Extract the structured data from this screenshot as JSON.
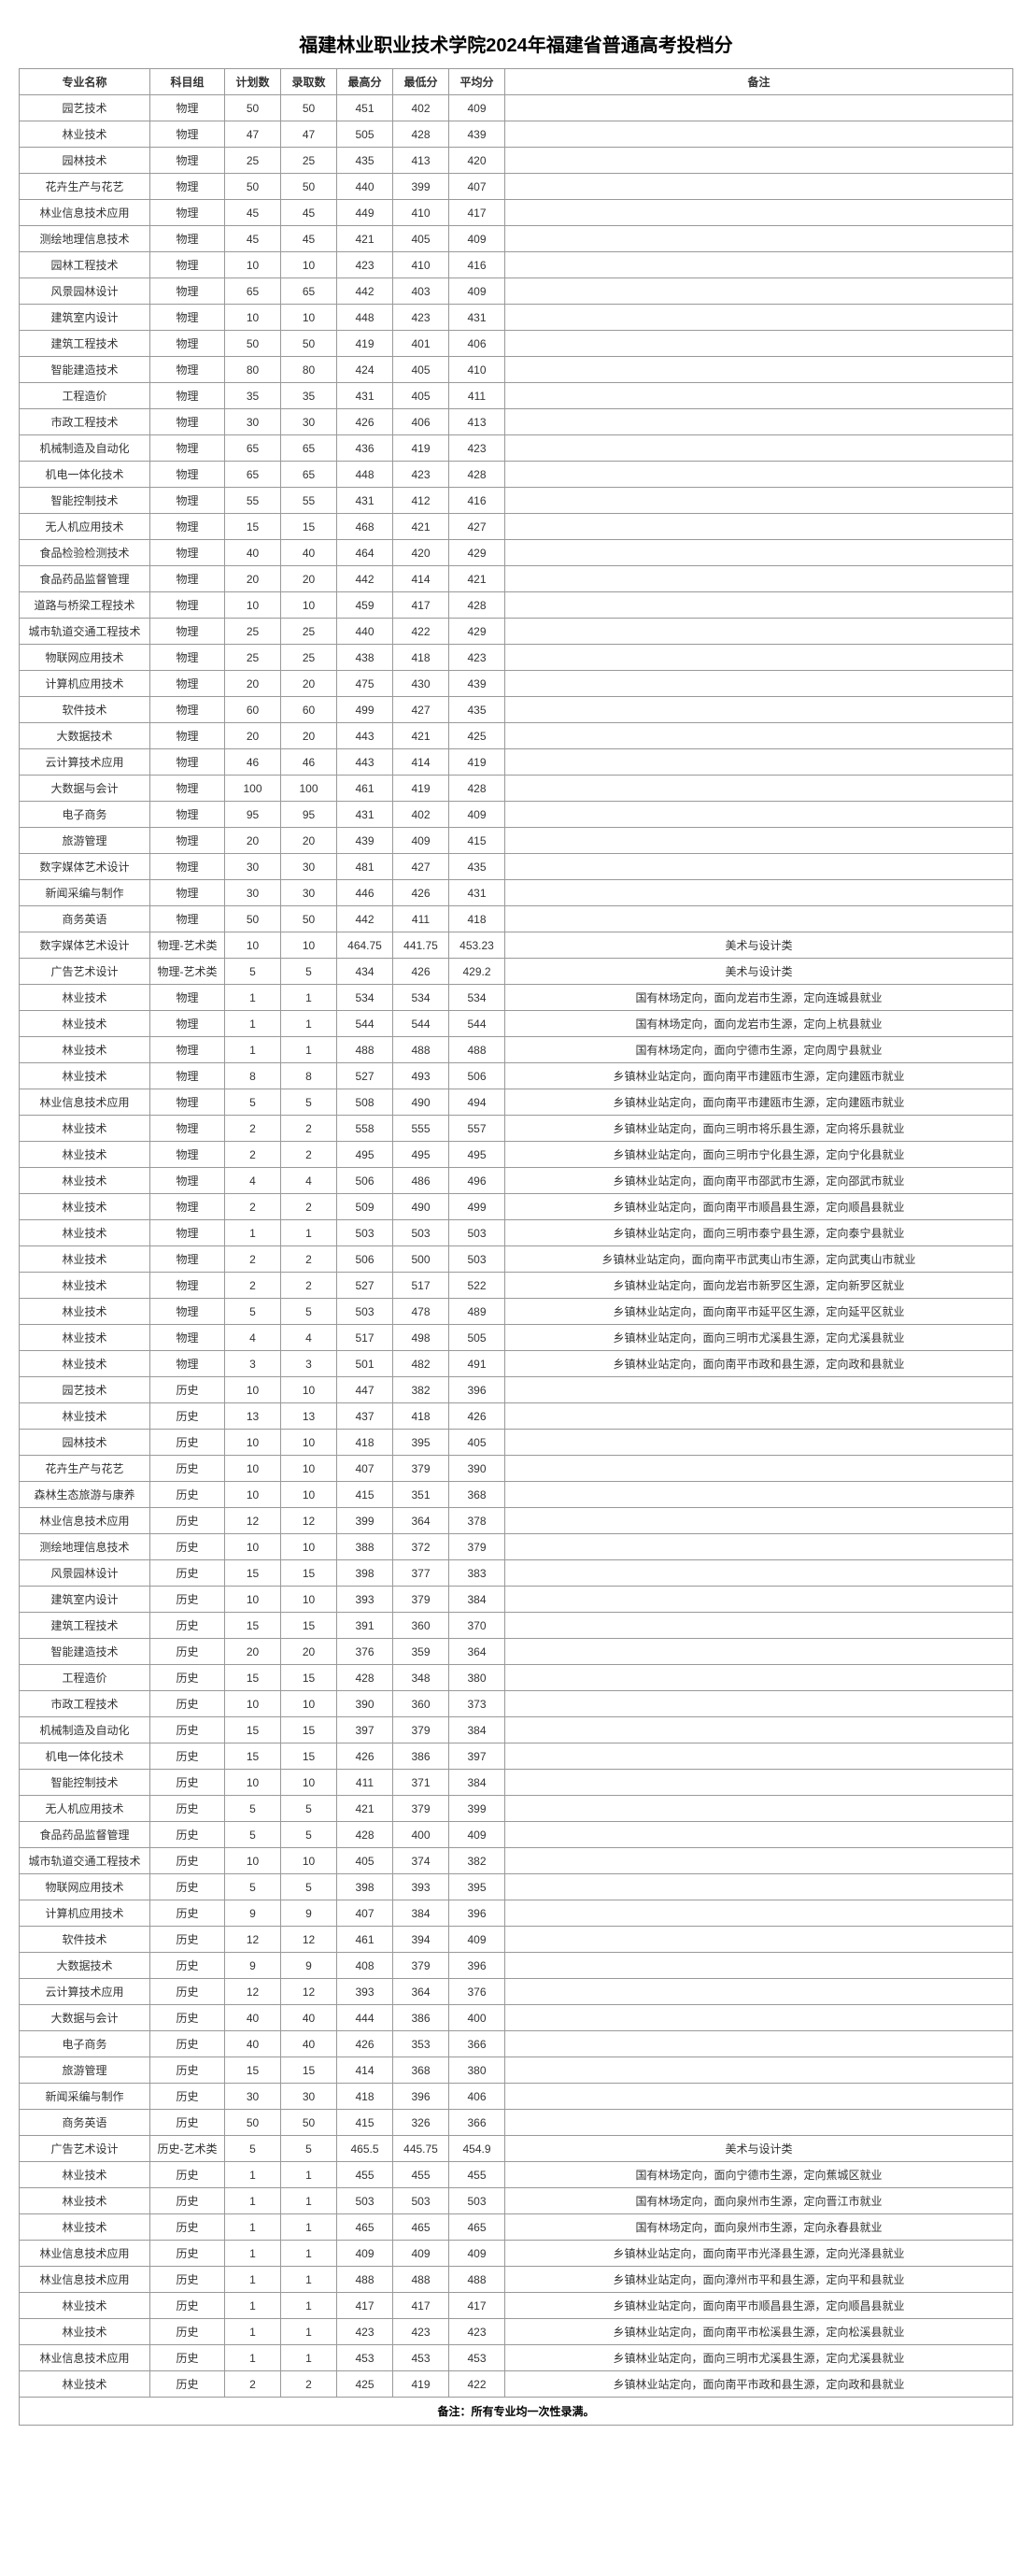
{
  "title": "福建林业职业技术学院2024年福建省普通高考投档分",
  "headers": [
    "专业名称",
    "科目组",
    "计划数",
    "录取数",
    "最高分",
    "最低分",
    "平均分",
    "备注"
  ],
  "footer": "备注：所有专业均一次性录满。",
  "rows": [
    {
      "major": "园艺技术",
      "subject": "物理",
      "plan": "50",
      "admit": "50",
      "high": "451",
      "low": "402",
      "avg": "409",
      "note": ""
    },
    {
      "major": "林业技术",
      "subject": "物理",
      "plan": "47",
      "admit": "47",
      "high": "505",
      "low": "428",
      "avg": "439",
      "note": ""
    },
    {
      "major": "园林技术",
      "subject": "物理",
      "plan": "25",
      "admit": "25",
      "high": "435",
      "low": "413",
      "avg": "420",
      "note": ""
    },
    {
      "major": "花卉生产与花艺",
      "subject": "物理",
      "plan": "50",
      "admit": "50",
      "high": "440",
      "low": "399",
      "avg": "407",
      "note": ""
    },
    {
      "major": "林业信息技术应用",
      "subject": "物理",
      "plan": "45",
      "admit": "45",
      "high": "449",
      "low": "410",
      "avg": "417",
      "note": ""
    },
    {
      "major": "测绘地理信息技术",
      "subject": "物理",
      "plan": "45",
      "admit": "45",
      "high": "421",
      "low": "405",
      "avg": "409",
      "note": ""
    },
    {
      "major": "园林工程技术",
      "subject": "物理",
      "plan": "10",
      "admit": "10",
      "high": "423",
      "low": "410",
      "avg": "416",
      "note": ""
    },
    {
      "major": "风景园林设计",
      "subject": "物理",
      "plan": "65",
      "admit": "65",
      "high": "442",
      "low": "403",
      "avg": "409",
      "note": ""
    },
    {
      "major": "建筑室内设计",
      "subject": "物理",
      "plan": "10",
      "admit": "10",
      "high": "448",
      "low": "423",
      "avg": "431",
      "note": ""
    },
    {
      "major": "建筑工程技术",
      "subject": "物理",
      "plan": "50",
      "admit": "50",
      "high": "419",
      "low": "401",
      "avg": "406",
      "note": ""
    },
    {
      "major": "智能建造技术",
      "subject": "物理",
      "plan": "80",
      "admit": "80",
      "high": "424",
      "low": "405",
      "avg": "410",
      "note": ""
    },
    {
      "major": "工程造价",
      "subject": "物理",
      "plan": "35",
      "admit": "35",
      "high": "431",
      "low": "405",
      "avg": "411",
      "note": ""
    },
    {
      "major": "市政工程技术",
      "subject": "物理",
      "plan": "30",
      "admit": "30",
      "high": "426",
      "low": "406",
      "avg": "413",
      "note": ""
    },
    {
      "major": "机械制造及自动化",
      "subject": "物理",
      "plan": "65",
      "admit": "65",
      "high": "436",
      "low": "419",
      "avg": "423",
      "note": ""
    },
    {
      "major": "机电一体化技术",
      "subject": "物理",
      "plan": "65",
      "admit": "65",
      "high": "448",
      "low": "423",
      "avg": "428",
      "note": ""
    },
    {
      "major": "智能控制技术",
      "subject": "物理",
      "plan": "55",
      "admit": "55",
      "high": "431",
      "low": "412",
      "avg": "416",
      "note": ""
    },
    {
      "major": "无人机应用技术",
      "subject": "物理",
      "plan": "15",
      "admit": "15",
      "high": "468",
      "low": "421",
      "avg": "427",
      "note": ""
    },
    {
      "major": "食品检验检测技术",
      "subject": "物理",
      "plan": "40",
      "admit": "40",
      "high": "464",
      "low": "420",
      "avg": "429",
      "note": ""
    },
    {
      "major": "食品药品监督管理",
      "subject": "物理",
      "plan": "20",
      "admit": "20",
      "high": "442",
      "low": "414",
      "avg": "421",
      "note": ""
    },
    {
      "major": "道路与桥梁工程技术",
      "subject": "物理",
      "plan": "10",
      "admit": "10",
      "high": "459",
      "low": "417",
      "avg": "428",
      "note": ""
    },
    {
      "major": "城市轨道交通工程技术",
      "subject": "物理",
      "plan": "25",
      "admit": "25",
      "high": "440",
      "low": "422",
      "avg": "429",
      "note": ""
    },
    {
      "major": "物联网应用技术",
      "subject": "物理",
      "plan": "25",
      "admit": "25",
      "high": "438",
      "low": "418",
      "avg": "423",
      "note": ""
    },
    {
      "major": "计算机应用技术",
      "subject": "物理",
      "plan": "20",
      "admit": "20",
      "high": "475",
      "low": "430",
      "avg": "439",
      "note": ""
    },
    {
      "major": "软件技术",
      "subject": "物理",
      "plan": "60",
      "admit": "60",
      "high": "499",
      "low": "427",
      "avg": "435",
      "note": ""
    },
    {
      "major": "大数据技术",
      "subject": "物理",
      "plan": "20",
      "admit": "20",
      "high": "443",
      "low": "421",
      "avg": "425",
      "note": ""
    },
    {
      "major": "云计算技术应用",
      "subject": "物理",
      "plan": "46",
      "admit": "46",
      "high": "443",
      "low": "414",
      "avg": "419",
      "note": ""
    },
    {
      "major": "大数据与会计",
      "subject": "物理",
      "plan": "100",
      "admit": "100",
      "high": "461",
      "low": "419",
      "avg": "428",
      "note": ""
    },
    {
      "major": "电子商务",
      "subject": "物理",
      "plan": "95",
      "admit": "95",
      "high": "431",
      "low": "402",
      "avg": "409",
      "note": ""
    },
    {
      "major": "旅游管理",
      "subject": "物理",
      "plan": "20",
      "admit": "20",
      "high": "439",
      "low": "409",
      "avg": "415",
      "note": ""
    },
    {
      "major": "数字媒体艺术设计",
      "subject": "物理",
      "plan": "30",
      "admit": "30",
      "high": "481",
      "low": "427",
      "avg": "435",
      "note": ""
    },
    {
      "major": "新闻采编与制作",
      "subject": "物理",
      "plan": "30",
      "admit": "30",
      "high": "446",
      "low": "426",
      "avg": "431",
      "note": ""
    },
    {
      "major": "商务英语",
      "subject": "物理",
      "plan": "50",
      "admit": "50",
      "high": "442",
      "low": "411",
      "avg": "418",
      "note": ""
    },
    {
      "major": "数字媒体艺术设计",
      "subject": "物理-艺术类",
      "plan": "10",
      "admit": "10",
      "high": "464.75",
      "low": "441.75",
      "avg": "453.23",
      "note": "美术与设计类"
    },
    {
      "major": "广告艺术设计",
      "subject": "物理-艺术类",
      "plan": "5",
      "admit": "5",
      "high": "434",
      "low": "426",
      "avg": "429.2",
      "note": "美术与设计类"
    },
    {
      "major": "林业技术",
      "subject": "物理",
      "plan": "1",
      "admit": "1",
      "high": "534",
      "low": "534",
      "avg": "534",
      "note": "国有林场定向，面向龙岩市生源，定向连城县就业"
    },
    {
      "major": "林业技术",
      "subject": "物理",
      "plan": "1",
      "admit": "1",
      "high": "544",
      "low": "544",
      "avg": "544",
      "note": "国有林场定向，面向龙岩市生源，定向上杭县就业"
    },
    {
      "major": "林业技术",
      "subject": "物理",
      "plan": "1",
      "admit": "1",
      "high": "488",
      "low": "488",
      "avg": "488",
      "note": "国有林场定向，面向宁德市生源，定向周宁县就业"
    },
    {
      "major": "林业技术",
      "subject": "物理",
      "plan": "8",
      "admit": "8",
      "high": "527",
      "low": "493",
      "avg": "506",
      "note": "乡镇林业站定向，面向南平市建瓯市生源，定向建瓯市就业"
    },
    {
      "major": "林业信息技术应用",
      "subject": "物理",
      "plan": "5",
      "admit": "5",
      "high": "508",
      "low": "490",
      "avg": "494",
      "note": "乡镇林业站定向，面向南平市建瓯市生源，定向建瓯市就业"
    },
    {
      "major": "林业技术",
      "subject": "物理",
      "plan": "2",
      "admit": "2",
      "high": "558",
      "low": "555",
      "avg": "557",
      "note": "乡镇林业站定向，面向三明市将乐县生源，定向将乐县就业"
    },
    {
      "major": "林业技术",
      "subject": "物理",
      "plan": "2",
      "admit": "2",
      "high": "495",
      "low": "495",
      "avg": "495",
      "note": "乡镇林业站定向，面向三明市宁化县生源，定向宁化县就业"
    },
    {
      "major": "林业技术",
      "subject": "物理",
      "plan": "4",
      "admit": "4",
      "high": "506",
      "low": "486",
      "avg": "496",
      "note": "乡镇林业站定向，面向南平市邵武市生源，定向邵武市就业"
    },
    {
      "major": "林业技术",
      "subject": "物理",
      "plan": "2",
      "admit": "2",
      "high": "509",
      "low": "490",
      "avg": "499",
      "note": "乡镇林业站定向，面向南平市顺昌县生源，定向顺昌县就业"
    },
    {
      "major": "林业技术",
      "subject": "物理",
      "plan": "1",
      "admit": "1",
      "high": "503",
      "low": "503",
      "avg": "503",
      "note": "乡镇林业站定向，面向三明市泰宁县生源，定向泰宁县就业"
    },
    {
      "major": "林业技术",
      "subject": "物理",
      "plan": "2",
      "admit": "2",
      "high": "506",
      "low": "500",
      "avg": "503",
      "note": "乡镇林业站定向，面向南平市武夷山市生源，定向武夷山市就业"
    },
    {
      "major": "林业技术",
      "subject": "物理",
      "plan": "2",
      "admit": "2",
      "high": "527",
      "low": "517",
      "avg": "522",
      "note": "乡镇林业站定向，面向龙岩市新罗区生源，定向新罗区就业"
    },
    {
      "major": "林业技术",
      "subject": "物理",
      "plan": "5",
      "admit": "5",
      "high": "503",
      "low": "478",
      "avg": "489",
      "note": "乡镇林业站定向，面向南平市延平区生源，定向延平区就业"
    },
    {
      "major": "林业技术",
      "subject": "物理",
      "plan": "4",
      "admit": "4",
      "high": "517",
      "low": "498",
      "avg": "505",
      "note": "乡镇林业站定向，面向三明市尤溪县生源，定向尤溪县就业"
    },
    {
      "major": "林业技术",
      "subject": "物理",
      "plan": "3",
      "admit": "3",
      "high": "501",
      "low": "482",
      "avg": "491",
      "note": "乡镇林业站定向，面向南平市政和县生源，定向政和县就业"
    },
    {
      "major": "园艺技术",
      "subject": "历史",
      "plan": "10",
      "admit": "10",
      "high": "447",
      "low": "382",
      "avg": "396",
      "note": ""
    },
    {
      "major": "林业技术",
      "subject": "历史",
      "plan": "13",
      "admit": "13",
      "high": "437",
      "low": "418",
      "avg": "426",
      "note": ""
    },
    {
      "major": "园林技术",
      "subject": "历史",
      "plan": "10",
      "admit": "10",
      "high": "418",
      "low": "395",
      "avg": "405",
      "note": ""
    },
    {
      "major": "花卉生产与花艺",
      "subject": "历史",
      "plan": "10",
      "admit": "10",
      "high": "407",
      "low": "379",
      "avg": "390",
      "note": ""
    },
    {
      "major": "森林生态旅游与康养",
      "subject": "历史",
      "plan": "10",
      "admit": "10",
      "high": "415",
      "low": "351",
      "avg": "368",
      "note": ""
    },
    {
      "major": "林业信息技术应用",
      "subject": "历史",
      "plan": "12",
      "admit": "12",
      "high": "399",
      "low": "364",
      "avg": "378",
      "note": ""
    },
    {
      "major": "测绘地理信息技术",
      "subject": "历史",
      "plan": "10",
      "admit": "10",
      "high": "388",
      "low": "372",
      "avg": "379",
      "note": ""
    },
    {
      "major": "风景园林设计",
      "subject": "历史",
      "plan": "15",
      "admit": "15",
      "high": "398",
      "low": "377",
      "avg": "383",
      "note": ""
    },
    {
      "major": "建筑室内设计",
      "subject": "历史",
      "plan": "10",
      "admit": "10",
      "high": "393",
      "low": "379",
      "avg": "384",
      "note": ""
    },
    {
      "major": "建筑工程技术",
      "subject": "历史",
      "plan": "15",
      "admit": "15",
      "high": "391",
      "low": "360",
      "avg": "370",
      "note": ""
    },
    {
      "major": "智能建造技术",
      "subject": "历史",
      "plan": "20",
      "admit": "20",
      "high": "376",
      "low": "359",
      "avg": "364",
      "note": ""
    },
    {
      "major": "工程造价",
      "subject": "历史",
      "plan": "15",
      "admit": "15",
      "high": "428",
      "low": "348",
      "avg": "380",
      "note": ""
    },
    {
      "major": "市政工程技术",
      "subject": "历史",
      "plan": "10",
      "admit": "10",
      "high": "390",
      "low": "360",
      "avg": "373",
      "note": ""
    },
    {
      "major": "机械制造及自动化",
      "subject": "历史",
      "plan": "15",
      "admit": "15",
      "high": "397",
      "low": "379",
      "avg": "384",
      "note": ""
    },
    {
      "major": "机电一体化技术",
      "subject": "历史",
      "plan": "15",
      "admit": "15",
      "high": "426",
      "low": "386",
      "avg": "397",
      "note": ""
    },
    {
      "major": "智能控制技术",
      "subject": "历史",
      "plan": "10",
      "admit": "10",
      "high": "411",
      "low": "371",
      "avg": "384",
      "note": ""
    },
    {
      "major": "无人机应用技术",
      "subject": "历史",
      "plan": "5",
      "admit": "5",
      "high": "421",
      "low": "379",
      "avg": "399",
      "note": ""
    },
    {
      "major": "食品药品监督管理",
      "subject": "历史",
      "plan": "5",
      "admit": "5",
      "high": "428",
      "low": "400",
      "avg": "409",
      "note": ""
    },
    {
      "major": "城市轨道交通工程技术",
      "subject": "历史",
      "plan": "10",
      "admit": "10",
      "high": "405",
      "low": "374",
      "avg": "382",
      "note": ""
    },
    {
      "major": "物联网应用技术",
      "subject": "历史",
      "plan": "5",
      "admit": "5",
      "high": "398",
      "low": "393",
      "avg": "395",
      "note": ""
    },
    {
      "major": "计算机应用技术",
      "subject": "历史",
      "plan": "9",
      "admit": "9",
      "high": "407",
      "low": "384",
      "avg": "396",
      "note": ""
    },
    {
      "major": "软件技术",
      "subject": "历史",
      "plan": "12",
      "admit": "12",
      "high": "461",
      "low": "394",
      "avg": "409",
      "note": ""
    },
    {
      "major": "大数据技术",
      "subject": "历史",
      "plan": "9",
      "admit": "9",
      "high": "408",
      "low": "379",
      "avg": "396",
      "note": ""
    },
    {
      "major": "云计算技术应用",
      "subject": "历史",
      "plan": "12",
      "admit": "12",
      "high": "393",
      "low": "364",
      "avg": "376",
      "note": ""
    },
    {
      "major": "大数据与会计",
      "subject": "历史",
      "plan": "40",
      "admit": "40",
      "high": "444",
      "low": "386",
      "avg": "400",
      "note": ""
    },
    {
      "major": "电子商务",
      "subject": "历史",
      "plan": "40",
      "admit": "40",
      "high": "426",
      "low": "353",
      "avg": "366",
      "note": ""
    },
    {
      "major": "旅游管理",
      "subject": "历史",
      "plan": "15",
      "admit": "15",
      "high": "414",
      "low": "368",
      "avg": "380",
      "note": ""
    },
    {
      "major": "新闻采编与制作",
      "subject": "历史",
      "plan": "30",
      "admit": "30",
      "high": "418",
      "low": "396",
      "avg": "406",
      "note": ""
    },
    {
      "major": "商务英语",
      "subject": "历史",
      "plan": "50",
      "admit": "50",
      "high": "415",
      "low": "326",
      "avg": "366",
      "note": ""
    },
    {
      "major": "广告艺术设计",
      "subject": "历史-艺术类",
      "plan": "5",
      "admit": "5",
      "high": "465.5",
      "low": "445.75",
      "avg": "454.9",
      "note": "美术与设计类"
    },
    {
      "major": "林业技术",
      "subject": "历史",
      "plan": "1",
      "admit": "1",
      "high": "455",
      "low": "455",
      "avg": "455",
      "note": "国有林场定向，面向宁德市生源，定向蕉城区就业"
    },
    {
      "major": "林业技术",
      "subject": "历史",
      "plan": "1",
      "admit": "1",
      "high": "503",
      "low": "503",
      "avg": "503",
      "note": "国有林场定向，面向泉州市生源，定向晋江市就业"
    },
    {
      "major": "林业技术",
      "subject": "历史",
      "plan": "1",
      "admit": "1",
      "high": "465",
      "low": "465",
      "avg": "465",
      "note": "国有林场定向，面向泉州市生源，定向永春县就业"
    },
    {
      "major": "林业信息技术应用",
      "subject": "历史",
      "plan": "1",
      "admit": "1",
      "high": "409",
      "low": "409",
      "avg": "409",
      "note": "乡镇林业站定向，面向南平市光泽县生源，定向光泽县就业"
    },
    {
      "major": "林业信息技术应用",
      "subject": "历史",
      "plan": "1",
      "admit": "1",
      "high": "488",
      "low": "488",
      "avg": "488",
      "note": "乡镇林业站定向，面向漳州市平和县生源，定向平和县就业"
    },
    {
      "major": "林业技术",
      "subject": "历史",
      "plan": "1",
      "admit": "1",
      "high": "417",
      "low": "417",
      "avg": "417",
      "note": "乡镇林业站定向，面向南平市顺昌县生源，定向顺昌县就业"
    },
    {
      "major": "林业技术",
      "subject": "历史",
      "plan": "1",
      "admit": "1",
      "high": "423",
      "low": "423",
      "avg": "423",
      "note": "乡镇林业站定向，面向南平市松溪县生源，定向松溪县就业"
    },
    {
      "major": "林业信息技术应用",
      "subject": "历史",
      "plan": "1",
      "admit": "1",
      "high": "453",
      "low": "453",
      "avg": "453",
      "note": "乡镇林业站定向，面向三明市尤溪县生源，定向尤溪县就业"
    },
    {
      "major": "林业技术",
      "subject": "历史",
      "plan": "2",
      "admit": "2",
      "high": "425",
      "low": "419",
      "avg": "422",
      "note": "乡镇林业站定向，面向南平市政和县生源，定向政和县就业"
    }
  ]
}
